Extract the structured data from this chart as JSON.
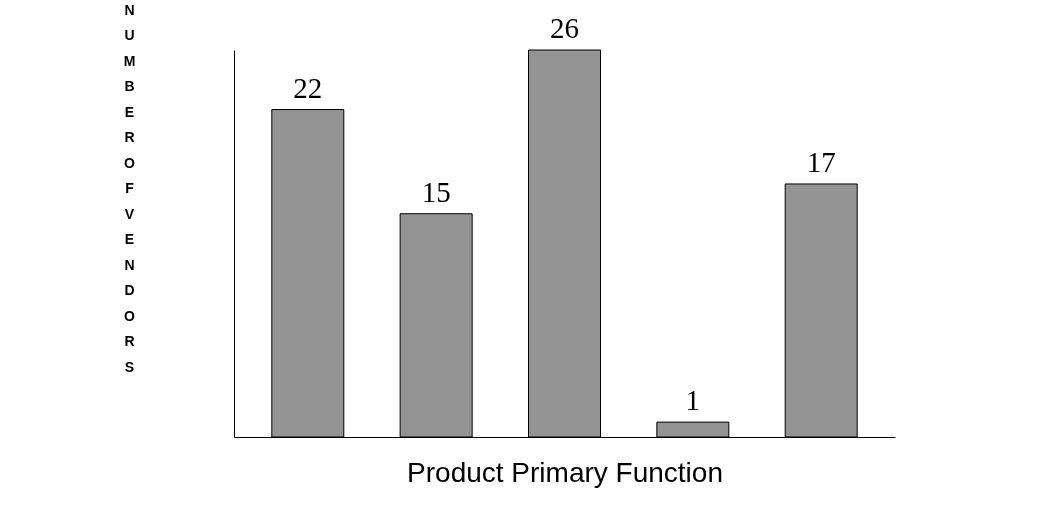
{
  "chart_data": {
    "type": "bar",
    "xlabel": "Product Primary Function",
    "ylabel": "NUMBER OF VENDORS",
    "categories": [
      null,
      null,
      null,
      null,
      null
    ],
    "values": [
      22,
      15,
      26,
      1,
      17
    ],
    "color": "#939393",
    "data_labels": true,
    "grid": false
  }
}
